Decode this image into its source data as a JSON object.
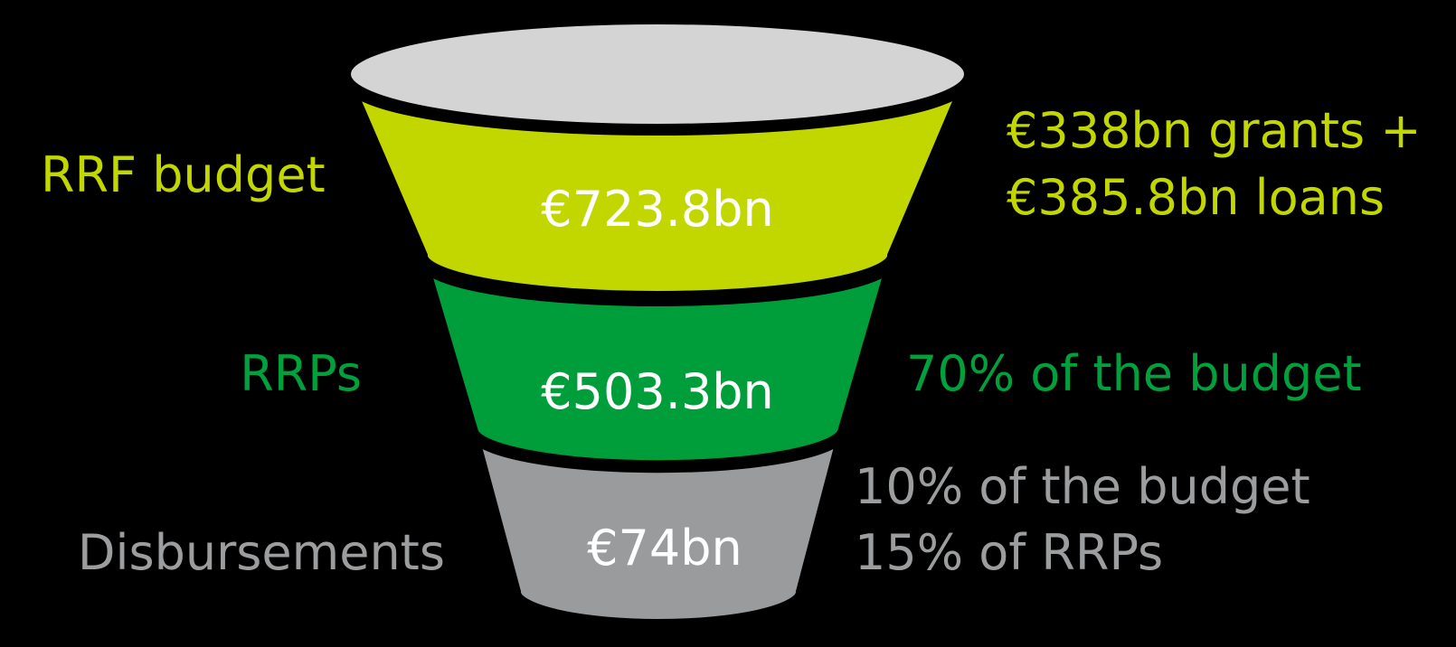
{
  "stages": [
    {
      "label": "RRF budget",
      "value": "€723.8bn",
      "notes": [
        "€338bn grants +",
        "€385.8bn loans"
      ]
    },
    {
      "label": "RRPs",
      "value": "€503.3bn",
      "notes": [
        "70% of the budget"
      ]
    },
    {
      "label": "Disbursements",
      "value": "€74bn",
      "notes": [
        "10% of the budget",
        "15% of RRPs"
      ]
    }
  ]
}
